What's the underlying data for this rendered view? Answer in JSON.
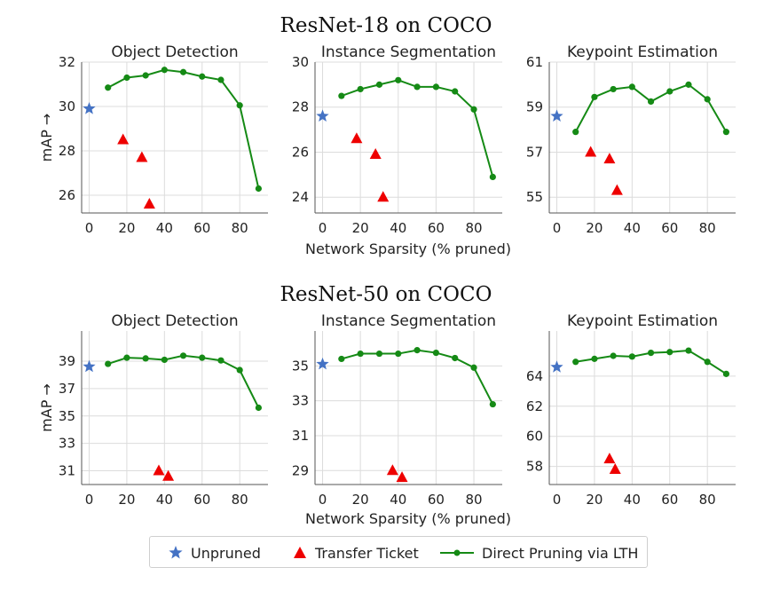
{
  "colors": {
    "unpruned": "#4472c4",
    "transfer": "#ee0000",
    "lth": "#158a15",
    "grid": "#dcdcdc",
    "axis": "#555555"
  },
  "icons": {
    "unpruned": "star",
    "transfer": "triangle",
    "lth": "line-with-dot"
  },
  "legend": {
    "unpruned": "Unpruned",
    "transfer": "Transfer Ticket",
    "lth": "Direct Pruning via LTH"
  },
  "chart_data": [
    {
      "row_title": "ResNet-18 on COCO",
      "ylabel": "mAP →",
      "xlabel": "Network Sparsity (% pruned)",
      "panels": [
        {
          "type": "line",
          "title": "Object Detection",
          "ylim": [
            25.2,
            32.0
          ],
          "xlim": [
            -4,
            95
          ],
          "yticks": [
            26,
            28,
            30,
            32
          ],
          "xticks": [
            0,
            20,
            40,
            60,
            80
          ],
          "grid": true,
          "unpruned": [
            {
              "x": 0,
              "y": 29.9
            }
          ],
          "transfer": [
            {
              "x": 18,
              "y": 28.5
            },
            {
              "x": 28,
              "y": 27.7
            },
            {
              "x": 32,
              "y": 25.6
            }
          ],
          "lth": {
            "x": [
              10,
              20,
              30,
              40,
              50,
              60,
              70,
              80,
              90
            ],
            "y": [
              30.85,
              31.3,
              31.4,
              31.65,
              31.55,
              31.35,
              31.2,
              30.05,
              26.3
            ]
          }
        },
        {
          "type": "line",
          "title": "Instance Segmentation",
          "ylim": [
            23.3,
            30.0
          ],
          "xlim": [
            -4,
            95
          ],
          "yticks": [
            24,
            26,
            28,
            30
          ],
          "xticks": [
            0,
            20,
            40,
            60,
            80
          ],
          "grid": true,
          "unpruned": [
            {
              "x": 0,
              "y": 27.6
            }
          ],
          "transfer": [
            {
              "x": 18,
              "y": 26.6
            },
            {
              "x": 28,
              "y": 25.9
            },
            {
              "x": 32,
              "y": 24.0
            }
          ],
          "lth": {
            "x": [
              10,
              20,
              30,
              40,
              50,
              60,
              70,
              80,
              90
            ],
            "y": [
              28.5,
              28.8,
              29.0,
              29.2,
              28.9,
              28.9,
              28.7,
              27.9,
              24.9
            ]
          }
        },
        {
          "type": "line",
          "title": "Keypoint Estimation",
          "ylim": [
            54.3,
            61.0
          ],
          "xlim": [
            -4,
            95
          ],
          "yticks": [
            55,
            57,
            59,
            61
          ],
          "xticks": [
            0,
            20,
            40,
            60,
            80
          ],
          "grid": true,
          "unpruned": [
            {
              "x": 0,
              "y": 58.6
            }
          ],
          "transfer": [
            {
              "x": 18,
              "y": 57.0
            },
            {
              "x": 28,
              "y": 56.7
            },
            {
              "x": 32,
              "y": 55.3
            }
          ],
          "lth": {
            "x": [
              10,
              20,
              30,
              40,
              50,
              60,
              70,
              80,
              90
            ],
            "y": [
              57.9,
              59.45,
              59.8,
              59.9,
              59.25,
              59.7,
              60.0,
              59.35,
              57.9
            ]
          }
        }
      ]
    },
    {
      "row_title": "ResNet-50 on COCO",
      "ylabel": "mAP →",
      "xlabel": "Network Sparsity (% pruned)",
      "panels": [
        {
          "type": "line",
          "title": "Object Detection",
          "ylim": [
            30.0,
            41.2
          ],
          "xlim": [
            -4,
            95
          ],
          "yticks": [
            31,
            33,
            35,
            37,
            39
          ],
          "xticks": [
            0,
            20,
            40,
            60,
            80
          ],
          "grid": true,
          "unpruned": [
            {
              "x": 0,
              "y": 38.6
            }
          ],
          "transfer": [
            {
              "x": 37,
              "y": 31.0
            },
            {
              "x": 42,
              "y": 30.6
            }
          ],
          "lth": {
            "x": [
              10,
              20,
              30,
              40,
              50,
              60,
              70,
              80,
              90
            ],
            "y": [
              38.8,
              39.25,
              39.2,
              39.1,
              39.4,
              39.25,
              39.05,
              38.35,
              35.6
            ]
          }
        },
        {
          "type": "line",
          "title": "Instance Segmentation",
          "ylim": [
            28.2,
            37.0
          ],
          "xlim": [
            -4,
            95
          ],
          "yticks": [
            29,
            31,
            33,
            35
          ],
          "xticks": [
            0,
            20,
            40,
            60,
            80
          ],
          "grid": true,
          "unpruned": [
            {
              "x": 0,
              "y": 35.1
            }
          ],
          "transfer": [
            {
              "x": 37,
              "y": 29.0
            },
            {
              "x": 42,
              "y": 28.6
            }
          ],
          "lth": {
            "x": [
              10,
              20,
              30,
              40,
              50,
              60,
              70,
              80,
              90
            ],
            "y": [
              35.4,
              35.7,
              35.7,
              35.7,
              35.9,
              35.75,
              35.45,
              34.9,
              32.8
            ]
          }
        },
        {
          "type": "line",
          "title": "Keypoint Estimation",
          "ylim": [
            56.8,
            67.0
          ],
          "xlim": [
            -4,
            95
          ],
          "yticks": [
            58,
            60,
            62,
            64
          ],
          "xticks": [
            0,
            20,
            40,
            60,
            80
          ],
          "grid": true,
          "unpruned": [
            {
              "x": 0,
              "y": 64.6
            }
          ],
          "transfer": [
            {
              "x": 28,
              "y": 58.5
            },
            {
              "x": 31,
              "y": 57.8
            }
          ],
          "lth": {
            "x": [
              10,
              20,
              30,
              40,
              50,
              60,
              70,
              80,
              90
            ],
            "y": [
              64.95,
              65.15,
              65.35,
              65.3,
              65.55,
              65.6,
              65.7,
              64.95,
              64.15
            ]
          }
        }
      ]
    }
  ]
}
